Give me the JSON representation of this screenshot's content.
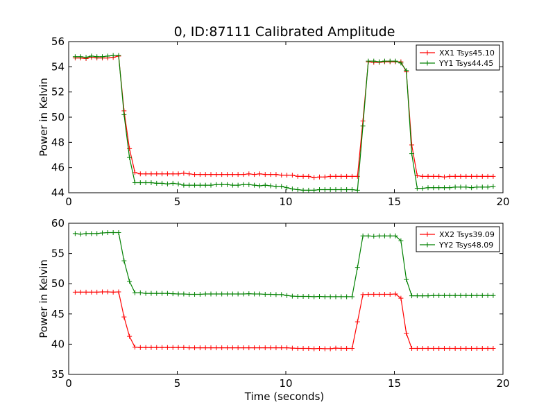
{
  "chart_data": [
    {
      "type": "line",
      "title": "0, ID:87111 Calibrated Amplitude",
      "xlabel": "",
      "ylabel": "Power in Kelvin",
      "xlim": [
        0,
        20
      ],
      "ylim": [
        44,
        56
      ],
      "xticks": [
        "0",
        "5",
        "10",
        "15",
        "20"
      ],
      "yticks": [
        "44",
        "46",
        "48",
        "50",
        "52",
        "54",
        "56"
      ],
      "legend_position": "top-right",
      "grid": false,
      "x": [
        0.3,
        0.55,
        0.8,
        1.05,
        1.3,
        1.55,
        1.8,
        2.05,
        2.3,
        2.55,
        2.8,
        3.05,
        3.3,
        3.55,
        3.8,
        4.05,
        4.3,
        4.55,
        4.8,
        5.05,
        5.3,
        5.55,
        5.8,
        6.05,
        6.3,
        6.55,
        6.8,
        7.05,
        7.3,
        7.55,
        7.8,
        8.05,
        8.3,
        8.55,
        8.8,
        9.05,
        9.3,
        9.55,
        9.8,
        10.05,
        10.3,
        10.55,
        10.8,
        11.05,
        11.3,
        11.55,
        11.8,
        12.05,
        12.3,
        12.55,
        12.8,
        13.05,
        13.3,
        13.55,
        13.8,
        14.05,
        14.3,
        14.55,
        14.8,
        15.05,
        15.3,
        15.55,
        15.8,
        16.05,
        16.3,
        16.55,
        16.8,
        17.05,
        17.3,
        17.55,
        17.8,
        18.05,
        18.3,
        18.55,
        18.8,
        19.05,
        19.3,
        19.55
      ],
      "series": [
        {
          "name": "XX1 Tsys45.10",
          "color": "#ff0000",
          "values": [
            54.7,
            54.7,
            54.65,
            54.75,
            54.7,
            54.7,
            54.7,
            54.75,
            54.85,
            50.5,
            47.5,
            45.6,
            45.5,
            45.5,
            45.5,
            45.5,
            45.5,
            45.5,
            45.5,
            45.5,
            45.55,
            45.5,
            45.45,
            45.45,
            45.45,
            45.45,
            45.45,
            45.45,
            45.45,
            45.45,
            45.45,
            45.45,
            45.5,
            45.45,
            45.5,
            45.45,
            45.45,
            45.45,
            45.4,
            45.4,
            45.4,
            45.3,
            45.3,
            45.3,
            45.2,
            45.25,
            45.25,
            45.3,
            45.3,
            45.3,
            45.3,
            45.3,
            45.3,
            49.7,
            54.4,
            54.35,
            54.35,
            54.4,
            54.4,
            54.4,
            54.4,
            53.6,
            47.8,
            45.35,
            45.3,
            45.3,
            45.3,
            45.3,
            45.25,
            45.3,
            45.3,
            45.3,
            45.3,
            45.3,
            45.3,
            45.3,
            45.3,
            45.3
          ]
        },
        {
          "name": "YY1 Tsys44.45",
          "color": "#008000",
          "values": [
            54.8,
            54.8,
            54.75,
            54.85,
            54.8,
            54.8,
            54.85,
            54.9,
            54.9,
            50.2,
            46.8,
            44.8,
            44.8,
            44.8,
            44.8,
            44.75,
            44.75,
            44.7,
            44.75,
            44.7,
            44.6,
            44.6,
            44.6,
            44.6,
            44.6,
            44.6,
            44.65,
            44.65,
            44.65,
            44.6,
            44.6,
            44.65,
            44.65,
            44.6,
            44.55,
            44.6,
            44.55,
            44.5,
            44.5,
            44.4,
            44.3,
            44.25,
            44.2,
            44.2,
            44.2,
            44.25,
            44.25,
            44.25,
            44.25,
            44.25,
            44.25,
            44.25,
            44.2,
            49.3,
            54.45,
            54.45,
            54.4,
            54.45,
            54.45,
            54.45,
            54.3,
            53.7,
            47.1,
            44.35,
            44.35,
            44.4,
            44.4,
            44.4,
            44.4,
            44.4,
            44.45,
            44.45,
            44.45,
            44.4,
            44.45,
            44.45,
            44.45,
            44.5
          ]
        }
      ]
    },
    {
      "type": "line",
      "title": "",
      "xlabel": "Time (seconds)",
      "ylabel": "Power in Kelvin",
      "xlim": [
        0,
        20
      ],
      "ylim": [
        35,
        60
      ],
      "xticks": [
        "0",
        "5",
        "10",
        "15",
        "20"
      ],
      "yticks": [
        "35",
        "40",
        "45",
        "50",
        "55",
        "60"
      ],
      "legend_position": "top-right",
      "grid": false,
      "x": [
        0.3,
        0.55,
        0.8,
        1.05,
        1.3,
        1.55,
        1.8,
        2.05,
        2.3,
        2.55,
        2.8,
        3.05,
        3.3,
        3.55,
        3.8,
        4.05,
        4.3,
        4.55,
        4.8,
        5.05,
        5.3,
        5.55,
        5.8,
        6.05,
        6.3,
        6.55,
        6.8,
        7.05,
        7.3,
        7.55,
        7.8,
        8.05,
        8.3,
        8.55,
        8.8,
        9.05,
        9.3,
        9.55,
        9.8,
        10.05,
        10.3,
        10.55,
        10.8,
        11.05,
        11.3,
        11.55,
        11.8,
        12.05,
        12.3,
        12.55,
        12.8,
        13.05,
        13.3,
        13.55,
        13.8,
        14.05,
        14.3,
        14.55,
        14.8,
        15.05,
        15.3,
        15.55,
        15.8,
        16.05,
        16.3,
        16.55,
        16.8,
        17.05,
        17.3,
        17.55,
        17.8,
        18.05,
        18.3,
        18.55,
        18.8,
        19.05,
        19.3,
        19.55
      ],
      "series": [
        {
          "name": "XX2 Tsys39.09",
          "color": "#ff0000",
          "values": [
            48.6,
            48.6,
            48.6,
            48.6,
            48.6,
            48.65,
            48.65,
            48.6,
            48.65,
            44.5,
            41.3,
            39.5,
            39.45,
            39.45,
            39.45,
            39.45,
            39.45,
            39.45,
            39.45,
            39.45,
            39.45,
            39.4,
            39.4,
            39.4,
            39.4,
            39.4,
            39.4,
            39.4,
            39.4,
            39.4,
            39.4,
            39.4,
            39.4,
            39.4,
            39.4,
            39.4,
            39.4,
            39.4,
            39.4,
            39.4,
            39.35,
            39.3,
            39.3,
            39.3,
            39.25,
            39.3,
            39.25,
            39.25,
            39.35,
            39.3,
            39.3,
            39.3,
            43.7,
            48.2,
            48.25,
            48.25,
            48.25,
            48.25,
            48.25,
            48.3,
            47.6,
            41.8,
            39.3,
            39.3,
            39.3,
            39.3,
            39.3,
            39.3,
            39.3,
            39.3,
            39.3,
            39.3,
            39.3,
            39.3,
            39.3,
            39.3,
            39.3,
            39.3
          ]
        },
        {
          "name": "YY2 Tsys48.09",
          "color": "#008000",
          "values": [
            58.3,
            58.2,
            58.3,
            58.3,
            58.3,
            58.4,
            58.45,
            58.45,
            58.45,
            53.8,
            50.4,
            48.5,
            48.5,
            48.4,
            48.4,
            48.4,
            48.4,
            48.4,
            48.35,
            48.3,
            48.3,
            48.25,
            48.25,
            48.25,
            48.3,
            48.3,
            48.3,
            48.3,
            48.3,
            48.3,
            48.3,
            48.3,
            48.35,
            48.3,
            48.3,
            48.25,
            48.25,
            48.2,
            48.2,
            48.05,
            47.95,
            47.9,
            47.9,
            47.9,
            47.85,
            47.9,
            47.85,
            47.85,
            47.85,
            47.85,
            47.85,
            47.85,
            52.7,
            57.9,
            57.9,
            57.85,
            57.9,
            57.9,
            57.9,
            57.9,
            57.1,
            50.7,
            48.0,
            48.0,
            48.0,
            48.0,
            48.05,
            48.05,
            48.05,
            48.05,
            48.05,
            48.05,
            48.05,
            48.05,
            48.05,
            48.05,
            48.05,
            48.05
          ]
        }
      ]
    }
  ]
}
